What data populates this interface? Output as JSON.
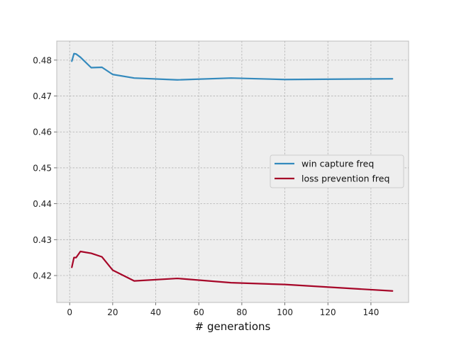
{
  "chart_data": {
    "type": "line",
    "title": "",
    "xlabel": "# generations",
    "ylabel": "",
    "xlim": [
      -6,
      157.5
    ],
    "ylim": [
      0.4125,
      0.4853
    ],
    "xticks": [
      0,
      20,
      40,
      60,
      80,
      100,
      120,
      140
    ],
    "yticks": [
      0.42,
      0.43,
      0.44,
      0.45,
      0.46,
      0.47,
      0.48
    ],
    "ytick_labels": [
      "0.42",
      "0.43",
      "0.44",
      "0.45",
      "0.46",
      "0.47",
      "0.48"
    ],
    "grid": true,
    "legend_position": "center-right",
    "series": [
      {
        "name": "win capture freq",
        "color": "#348ABD",
        "x": [
          1,
          2,
          3,
          5,
          10,
          15,
          20,
          30,
          50,
          75,
          100,
          150
        ],
        "y": [
          0.4797,
          0.4818,
          0.4817,
          0.4808,
          0.4779,
          0.478,
          0.476,
          0.475,
          0.4745,
          0.475,
          0.4746,
          0.4748
        ]
      },
      {
        "name": "loss prevention freq",
        "color": "#A60628",
        "x": [
          1,
          2,
          3,
          5,
          10,
          15,
          20,
          30,
          50,
          75,
          100,
          150
        ],
        "y": [
          0.4223,
          0.425,
          0.425,
          0.4267,
          0.4262,
          0.4252,
          0.4215,
          0.4185,
          0.4192,
          0.418,
          0.4175,
          0.4157
        ]
      }
    ]
  }
}
